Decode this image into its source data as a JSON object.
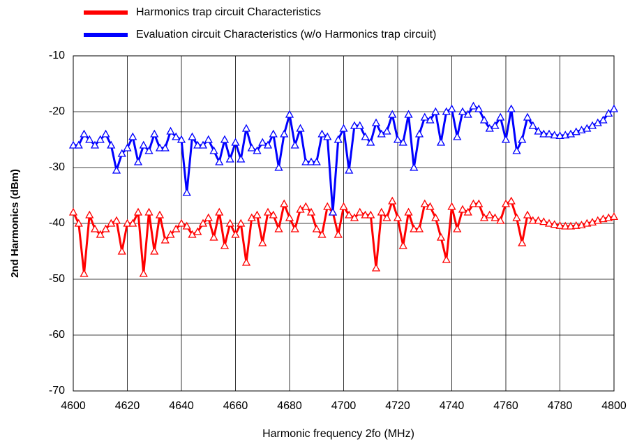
{
  "chart_data": {
    "type": "line",
    "xlabel": "Harmonic frequency 2fo (MHz)",
    "ylabel": "2nd Harmonics (dBm)",
    "x": [
      4600,
      4602,
      4604,
      4606,
      4608,
      4610,
      4612,
      4614,
      4616,
      4618,
      4620,
      4622,
      4624,
      4626,
      4628,
      4630,
      4632,
      4634,
      4636,
      4638,
      4640,
      4642,
      4644,
      4646,
      4648,
      4650,
      4652,
      4654,
      4656,
      4658,
      4660,
      4662,
      4664,
      4666,
      4668,
      4670,
      4672,
      4674,
      4676,
      4678,
      4680,
      4682,
      4684,
      4686,
      4688,
      4690,
      4692,
      4694,
      4696,
      4698,
      4700,
      4702,
      4704,
      4706,
      4708,
      4710,
      4712,
      4714,
      4716,
      4718,
      4720,
      4722,
      4724,
      4726,
      4728,
      4730,
      4732,
      4734,
      4736,
      4738,
      4740,
      4742,
      4744,
      4746,
      4748,
      4750,
      4752,
      4754,
      4756,
      4758,
      4760,
      4762,
      4764,
      4766,
      4768,
      4770,
      4772,
      4774,
      4776,
      4778,
      4780,
      4782,
      4784,
      4786,
      4788,
      4790,
      4792,
      4794,
      4796,
      4798,
      4800
    ],
    "series": [
      {
        "name": "Harmonics trap circuit Characteristics",
        "color": "#ff0000",
        "values": [
          -38,
          -40,
          -49,
          -38.5,
          -41,
          -42,
          -41,
          -40,
          -39.5,
          -45,
          -40,
          -40,
          -38,
          -49,
          -38,
          -45,
          -38.5,
          -43,
          -42,
          -41,
          -40,
          -40.5,
          -42,
          -41.5,
          -40,
          -39,
          -42.5,
          -38,
          -44,
          -40,
          -42,
          -40,
          -47,
          -39,
          -38.5,
          -43.5,
          -38,
          -38.5,
          -41,
          -36.5,
          -39,
          -41,
          -37.5,
          -37,
          -38,
          -41,
          -42,
          -37,
          -38,
          -42,
          -37,
          -38.5,
          -39,
          -38,
          -38.5,
          -38.5,
          -48,
          -38,
          -39,
          -36,
          -39,
          -44,
          -38,
          -41,
          -41,
          -36.5,
          -37,
          -39,
          -42.5,
          -46.5,
          -37,
          -41,
          -37.5,
          -38,
          -36.5,
          -36.5,
          -39,
          -38.5,
          -39,
          -39.5,
          -36.5,
          -36,
          -39,
          -43.5,
          -38.5,
          -39.5,
          -39.5,
          -39.7,
          -40,
          -40.2,
          -40.4,
          -40.5,
          -40.5,
          -40.4,
          -40.3,
          -40,
          -39.8,
          -39.5,
          -39.2,
          -39,
          -38.8
        ]
      },
      {
        "name": "Evaluation circuit Characteristics (w/o Harmonics trap circuit)",
        "color": "#0000ff",
        "values": [
          -26,
          -26,
          -24,
          -25,
          -26,
          -25,
          -24,
          -26,
          -30.5,
          -27.5,
          -26.5,
          -24.5,
          -29,
          -26,
          -27,
          -24,
          -26.5,
          -26.5,
          -23.5,
          -24.5,
          -25,
          -34.5,
          -24.5,
          -26,
          -26,
          -25,
          -27,
          -29,
          -25,
          -28.5,
          -25.5,
          -28.5,
          -23,
          -26.5,
          -27,
          -25.5,
          -26,
          -24,
          -30,
          -24,
          -20.5,
          -26,
          -23,
          -29,
          -29,
          -29,
          -24,
          -24.5,
          -38,
          -25,
          -23,
          -30.5,
          -22.5,
          -22.5,
          -24.5,
          -25.5,
          -22,
          -24,
          -23.5,
          -20.5,
          -25,
          -25.5,
          -20.5,
          -30,
          -24,
          -21,
          -21.5,
          -20,
          -25.5,
          -20,
          -19.5,
          -24.5,
          -20,
          -20.5,
          -19,
          -19.5,
          -21.5,
          -23,
          -22.5,
          -21,
          -25,
          -19.5,
          -27,
          -25,
          -21,
          -22.5,
          -23.5,
          -24,
          -24,
          -24.2,
          -24.3,
          -24.2,
          -24,
          -23.6,
          -23.3,
          -23,
          -22.5,
          -22,
          -21.5,
          -20.3,
          -19.5
        ]
      }
    ],
    "xlim": [
      4600,
      4800
    ],
    "xticks": [
      4600,
      4620,
      4640,
      4660,
      4680,
      4700,
      4720,
      4740,
      4760,
      4780,
      4800
    ],
    "ylim": [
      -70,
      -10
    ],
    "yticks": [
      -70,
      -60,
      -50,
      -40,
      -30,
      -20,
      -10
    ],
    "grid": true,
    "legend": "top"
  }
}
